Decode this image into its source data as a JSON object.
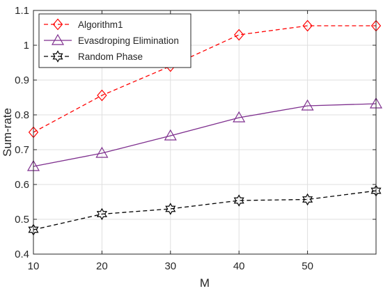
{
  "chart_data": {
    "type": "line",
    "xlabel": "M",
    "ylabel": "Sum-rate",
    "xlim": [
      10,
      60
    ],
    "ylim": [
      0.4,
      1.1
    ],
    "xticks": [
      10,
      20,
      30,
      40,
      50
    ],
    "xtick_labels": [
      "10",
      "20",
      "30",
      "40",
      "50"
    ],
    "yticks": [
      0.4,
      0.5,
      0.6,
      0.7,
      0.8,
      0.9,
      1.0,
      1.1
    ],
    "ytick_labels": [
      "0.4",
      "0.5",
      "0.6",
      "0.7",
      "0.8",
      "0.9",
      "1",
      "1.1"
    ],
    "grid": true,
    "legend_position": "top-left",
    "x": [
      10,
      20,
      30,
      40,
      50,
      60
    ],
    "series": [
      {
        "name": "Algorithm1",
        "values": [
          0.75,
          0.856,
          0.94,
          1.03,
          1.056,
          1.056
        ],
        "color": "#ff0000",
        "line_style": "dashed",
        "marker": "diamond"
      },
      {
        "name": "Evasdroping Elimination",
        "values": [
          0.652,
          0.69,
          0.74,
          0.792,
          0.826,
          0.832
        ],
        "color": "#7e2f8e",
        "line_style": "solid",
        "marker": "triangle"
      },
      {
        "name": "Random Phase",
        "values": [
          0.47,
          0.515,
          0.53,
          0.554,
          0.557,
          0.582
        ],
        "color": "#000000",
        "line_style": "dashed",
        "marker": "hexagram"
      }
    ]
  }
}
